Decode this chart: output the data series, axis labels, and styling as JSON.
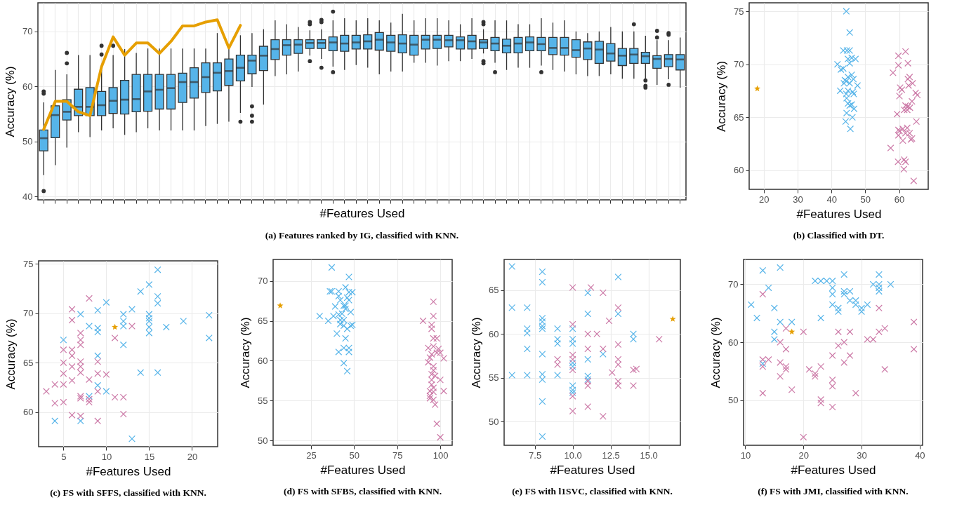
{
  "chart_data": [
    {
      "type": "box",
      "title": "(a) Features ranked by IG, classified with KNN.",
      "xlabel": "#Features Used",
      "ylabel": "Accuracy (%)",
      "ylim": [
        39.4,
        75.2
      ],
      "yticks": [
        40,
        50,
        60,
        70
      ],
      "grid": true,
      "categories": [
        null,
        null,
        null,
        null,
        null,
        null,
        null,
        null,
        null,
        null,
        null,
        null,
        null,
        null,
        null,
        null,
        null,
        null,
        null,
        null,
        null,
        null,
        null,
        null,
        null,
        null,
        null,
        null,
        null,
        null,
        null,
        null,
        null,
        null,
        null,
        null,
        null,
        null,
        null,
        null,
        null,
        null,
        null,
        null,
        null,
        null,
        null,
        null,
        null,
        null,
        null,
        null,
        null,
        null,
        null,
        null
      ],
      "series": [
        {
          "type": "box",
          "color": "#56b4e9",
          "boxes": [
            {
              "low": 43.9,
              "q1": 48.3,
              "median": 50.6,
              "q3": 52.1,
              "high": 57.1,
              "outliers": [
                59.1,
                58.7,
                41.0
              ]
            },
            {
              "low": 45.7,
              "q1": 50.7,
              "median": 54.8,
              "q3": 56.5,
              "high": 63.0
            },
            {
              "low": 48.9,
              "q1": 53.9,
              "median": 55.4,
              "q3": 57.6,
              "high": 62.2,
              "outliers": [
                66.1,
                64.2
              ]
            },
            {
              "low": 51.7,
              "q1": 54.7,
              "median": 56.3,
              "q3": 59.5,
              "high": 65.7
            },
            {
              "low": 50.8,
              "q1": 54.7,
              "median": 56.3,
              "q3": 59.8,
              "high": 65.7
            },
            {
              "low": 52.0,
              "q1": 54.7,
              "median": 56.6,
              "q3": 59.1,
              "high": 63.0,
              "outliers": [
                67.4,
                65.8
              ]
            },
            {
              "low": 52.4,
              "q1": 55.1,
              "median": 57.4,
              "q3": 59.8,
              "high": 65.7,
              "outliers": [
                67.4
              ]
            },
            {
              "low": 51.2,
              "q1": 55.0,
              "median": 57.6,
              "q3": 61.1,
              "high": 66.8
            },
            {
              "low": 51.7,
              "q1": 55.4,
              "median": 57.7,
              "q3": 62.2,
              "high": 66.1
            },
            {
              "low": 52.4,
              "q1": 55.5,
              "median": 59.1,
              "q3": 62.2,
              "high": 66.9
            },
            {
              "low": 52.0,
              "q1": 55.9,
              "median": 59.4,
              "q3": 62.2,
              "high": 66.9
            },
            {
              "low": 52.0,
              "q1": 55.9,
              "median": 59.7,
              "q3": 62.2,
              "high": 66.9
            },
            {
              "low": 52.0,
              "q1": 57.1,
              "median": 60.8,
              "q3": 62.4,
              "high": 66.9
            },
            {
              "low": 52.0,
              "q1": 57.9,
              "median": 60.8,
              "q3": 63.4,
              "high": 66.9
            },
            {
              "low": 52.8,
              "q1": 58.9,
              "median": 61.7,
              "q3": 64.3,
              "high": 66.9
            },
            {
              "low": 53.2,
              "q1": 59.2,
              "median": 62.5,
              "q3": 64.3,
              "high": 69.7
            },
            {
              "low": 53.6,
              "q1": 60.2,
              "median": 62.8,
              "q3": 65.0,
              "high": 67.0
            },
            {
              "low": 55.2,
              "q1": 61.0,
              "median": 63.4,
              "q3": 65.7,
              "high": 69.3,
              "outliers": [
                53.6
              ]
            },
            {
              "low": 59.9,
              "q1": 62.3,
              "median": 64.7,
              "q3": 65.7,
              "high": 69.7,
              "outliers": [
                56.4,
                54.7,
                53.6
              ]
            },
            {
              "low": 56.7,
              "q1": 62.9,
              "median": 65.6,
              "q3": 67.3,
              "high": 70.4
            },
            {
              "low": 61.9,
              "q1": 64.9,
              "median": 66.8,
              "q3": 68.5,
              "high": 72.0
            },
            {
              "low": 62.2,
              "q1": 65.7,
              "median": 67.5,
              "q3": 68.5,
              "high": 71.3
            },
            {
              "low": 62.7,
              "q1": 66.0,
              "median": 67.6,
              "q3": 68.5,
              "high": 70.8
            },
            {
              "low": 65.6,
              "q1": 66.9,
              "median": 67.9,
              "q3": 68.5,
              "high": 70.2,
              "outliers": [
                71.7,
                71.3,
                64.6
              ]
            },
            {
              "low": 65.0,
              "q1": 66.9,
              "median": 67.9,
              "q3": 68.5,
              "high": 70.4,
              "outliers": [
                72.1,
                71.7,
                63.4
              ]
            },
            {
              "low": 63.6,
              "q1": 66.5,
              "median": 68.0,
              "q3": 69.0,
              "high": 72.0,
              "outliers": [
                73.6,
                62.6
              ]
            },
            {
              "low": 63.0,
              "q1": 66.4,
              "median": 67.8,
              "q3": 69.3,
              "high": 72.4
            },
            {
              "low": 63.9,
              "q1": 66.8,
              "median": 68.0,
              "q3": 69.3,
              "high": 72.0
            },
            {
              "low": 63.4,
              "q1": 66.8,
              "median": 68.2,
              "q3": 69.4,
              "high": 72.4
            },
            {
              "low": 62.2,
              "q1": 66.6,
              "median": 68.5,
              "q3": 69.8,
              "high": 72.0
            },
            {
              "low": 62.7,
              "q1": 66.4,
              "median": 68.0,
              "q3": 69.3,
              "high": 71.6
            },
            {
              "low": 62.7,
              "q1": 66.1,
              "median": 67.8,
              "q3": 69.4,
              "high": 73.2
            },
            {
              "low": 64.3,
              "q1": 65.7,
              "median": 67.6,
              "q3": 69.3,
              "high": 72.0
            },
            {
              "low": 64.3,
              "q1": 66.8,
              "median": 68.5,
              "q3": 69.3,
              "high": 72.4
            },
            {
              "low": 63.8,
              "q1": 66.9,
              "median": 68.5,
              "q3": 69.3,
              "high": 72.4
            },
            {
              "low": 64.6,
              "q1": 67.2,
              "median": 68.4,
              "q3": 69.3,
              "high": 72.0
            },
            {
              "low": 64.6,
              "q1": 66.8,
              "median": 68.4,
              "q3": 69.0,
              "high": 71.3
            },
            {
              "low": 65.0,
              "q1": 66.8,
              "median": 68.2,
              "q3": 69.3,
              "high": 72.4
            },
            {
              "low": 66.0,
              "q1": 66.9,
              "median": 68.0,
              "q3": 68.5,
              "high": 70.4,
              "outliers": [
                71.7,
                71.3,
                64.6,
                64.2
              ]
            },
            {
              "low": 64.3,
              "q1": 66.5,
              "median": 67.8,
              "q3": 68.9,
              "high": 72.0,
              "outliers": [
                62.6
              ]
            },
            {
              "low": 63.0,
              "q1": 66.1,
              "median": 67.4,
              "q3": 68.6,
              "high": 72.0
            },
            {
              "low": 63.4,
              "q1": 66.1,
              "median": 67.8,
              "q3": 68.9,
              "high": 71.3
            },
            {
              "low": 63.4,
              "q1": 66.5,
              "median": 68.0,
              "q3": 69.0,
              "high": 71.3
            },
            {
              "low": 63.8,
              "q1": 66.5,
              "median": 67.7,
              "q3": 68.9,
              "high": 72.4,
              "outliers": [
                62.6
              ]
            },
            {
              "low": 63.0,
              "q1": 65.8,
              "median": 67.0,
              "q3": 68.9,
              "high": 71.6
            },
            {
              "low": 62.7,
              "q1": 65.7,
              "median": 67.0,
              "q3": 68.9,
              "high": 72.0
            },
            {
              "low": 62.2,
              "q1": 65.3,
              "median": 66.6,
              "q3": 68.5,
              "high": 70.0
            },
            {
              "low": 61.9,
              "q1": 64.9,
              "median": 66.9,
              "q3": 68.1,
              "high": 69.7
            },
            {
              "low": 61.9,
              "q1": 64.2,
              "median": 66.7,
              "q3": 68.2,
              "high": 70.0
            },
            {
              "low": 62.2,
              "q1": 64.6,
              "median": 66.0,
              "q3": 67.8,
              "high": 70.8
            },
            {
              "low": 61.4,
              "q1": 63.8,
              "median": 65.6,
              "q3": 66.9,
              "high": 70.0
            },
            {
              "low": 61.4,
              "q1": 64.2,
              "median": 65.8,
              "q3": 66.9,
              "high": 70.0,
              "outliers": [
                71.3
              ]
            },
            {
              "low": 61.4,
              "q1": 64.2,
              "median": 65.5,
              "q3": 66.2,
              "high": 69.2,
              "outliers": [
                61.1,
                60.1,
                59.8
              ]
            },
            {
              "low": 60.3,
              "q1": 63.3,
              "median": 65.0,
              "q3": 65.6,
              "high": 68.4,
              "outliers": [
                70.1,
                68.9
              ]
            },
            {
              "low": 61.3,
              "q1": 63.6,
              "median": 65.0,
              "q3": 65.8,
              "high": 68.4,
              "outliers": [
                69.7,
                69.4,
                60.3
              ]
            },
            {
              "low": 59.8,
              "q1": 63.0,
              "median": 64.9,
              "q3": 65.8,
              "high": 68.9
            }
          ]
        },
        {
          "type": "line",
          "color": "#e69f00",
          "line_style": "solid",
          "values": [
            52.2,
            57.3,
            57.3,
            55.4,
            54.7,
            63.6,
            69.0,
            65.7,
            67.9,
            67.9,
            66.0,
            68.2,
            71.0,
            71.0,
            71.7,
            72.1,
            67.0,
            71.1,
            null,
            null,
            null,
            null,
            null,
            null,
            null,
            null,
            null,
            null,
            null,
            null,
            null,
            null,
            null,
            null,
            null,
            null,
            null,
            null,
            null,
            null,
            null,
            null,
            null,
            null,
            null,
            null,
            null,
            null,
            null,
            null,
            null,
            null,
            null,
            null,
            null,
            null
          ]
        }
      ]
    },
    {
      "type": "scatter",
      "title": "(b) Classified with DT.",
      "xlabel": "#Features Used",
      "ylabel": "Accuracy (%)",
      "xlim": [
        15.7,
        68.6
      ],
      "xticks": [
        20,
        30,
        40,
        50,
        60
      ],
      "ylim": [
        58.2,
        75.8
      ],
      "yticks": [
        60,
        65,
        70,
        75
      ],
      "grid": true,
      "series": [
        {
          "color": "#56b4e9",
          "marker": "cross",
          "x": [
            44.4,
            45.4,
            43.5,
            44.6,
            45.4,
            44.9,
            46.0,
            47.1,
            41.8,
            42.8,
            43.5,
            45.4,
            44.4,
            44.0,
            44.9,
            46.0,
            46.5,
            45.4,
            47.7,
            42.6,
            44.9,
            46.3,
            44.4,
            46.6,
            44.5,
            44.9,
            45.4,
            46.0,
            44.5,
            46.7,
            44.2,
            46.2,
            45.6,
            43.7
          ],
          "values": [
            75.0,
            73.0,
            71.3,
            71.3,
            71.3,
            70.5,
            70.6,
            70.5,
            70.0,
            69.5,
            69.6,
            70.1,
            68.4,
            68.5,
            68.8,
            69.0,
            68.6,
            68.2,
            68.0,
            67.5,
            67.5,
            67.4,
            67.2,
            67.2,
            66.8,
            66.3,
            66.1,
            66.2,
            65.4,
            65.8,
            64.6,
            65.0,
            63.9,
            68.2
          ]
        },
        {
          "color": "#cc79a7",
          "marker": "cross",
          "x": [
            59.8,
            61.9,
            59.8,
            62.6,
            58.2,
            62.6,
            63.1,
            64.0,
            62.8,
            60.3,
            60.8,
            60.1,
            64.9,
            65.4,
            63.8,
            61.9,
            61.5,
            62.4,
            63.2,
            62.6,
            59.4,
            65.1,
            59.8,
            60.1,
            61.1,
            62.4,
            59.8,
            61.9,
            63.1,
            61.1,
            63.5,
            63.8,
            57.5,
            59.7,
            61.5,
            61.9,
            61.4,
            64.3
          ],
          "values": [
            70.8,
            71.2,
            69.9,
            70.1,
            69.2,
            68.6,
            68.8,
            68.2,
            68.0,
            67.8,
            67.6,
            67.0,
            67.3,
            67.1,
            66.5,
            66.1,
            65.7,
            65.7,
            65.9,
            66.0,
            65.3,
            64.6,
            63.8,
            63.7,
            63.9,
            64.0,
            63.3,
            63.5,
            63.5,
            62.8,
            62.9,
            63.0,
            62.1,
            60.8,
            61.0,
            60.8,
            60.1,
            59.0
          ]
        },
        {
          "color": "#e69f00",
          "marker": "star",
          "x": [
            18.1
          ],
          "values": [
            67.7
          ]
        }
      ]
    },
    {
      "type": "scatter",
      "title": "(c) FS with SFFS, classified with KNN.",
      "xlabel": "#Features Used",
      "ylabel": "Accuracy (%)",
      "xlim": [
        2.1,
        23.0
      ],
      "xticks": [
        5,
        10,
        15,
        20
      ],
      "ylim": [
        56.5,
        75.3
      ],
      "yticks": [
        60,
        65,
        70,
        75
      ],
      "grid": true,
      "series": [
        {
          "color": "#56b4e9",
          "marker": "cross",
          "x": [
            16,
            15,
            14,
            16,
            16,
            10,
            7,
            9,
            12,
            15,
            22,
            19,
            15,
            12,
            15,
            8,
            9,
            12,
            17,
            9,
            15,
            15,
            22,
            5,
            12,
            9,
            14,
            16,
            9,
            10,
            8,
            4,
            7,
            13,
            13
          ],
          "values": [
            74.4,
            72.9,
            72.2,
            71.7,
            71.0,
            71.1,
            69.9,
            70.3,
            69.9,
            69.9,
            69.8,
            69.2,
            69.5,
            69.2,
            69.2,
            68.7,
            68.5,
            68.7,
            68.6,
            68.1,
            68.6,
            68.0,
            67.5,
            67.3,
            66.8,
            65.7,
            64.0,
            64.0,
            62.7,
            62.1,
            61.6,
            59.1,
            59.1,
            57.3,
            70.4
          ]
        },
        {
          "color": "#cc79a7",
          "marker": "cross",
          "x": [
            3,
            4,
            4,
            5,
            5,
            5,
            5,
            5,
            6,
            6,
            6,
            6,
            6,
            6,
            6,
            7,
            7,
            7,
            7,
            7,
            7,
            7,
            7,
            7,
            8,
            8,
            8,
            8,
            9,
            9,
            9,
            9,
            10,
            11,
            12,
            12,
            11,
            13
          ],
          "values": [
            62.1,
            62.8,
            60.9,
            62.8,
            61.0,
            63.9,
            65.0,
            66.3,
            70.4,
            69.3,
            66.3,
            65.7,
            64.6,
            63.2,
            59.7,
            68.0,
            67.3,
            66.8,
            65.1,
            64.6,
            64.0,
            61.6,
            61.4,
            59.6,
            71.5,
            63.3,
            61.3,
            61.0,
            65.1,
            63.9,
            62.1,
            59.1,
            63.8,
            61.5,
            61.5,
            59.8,
            67.5,
            68.7
          ]
        },
        {
          "color": "#e69f00",
          "marker": "star",
          "x": [
            11
          ],
          "values": [
            68.6
          ]
        }
      ]
    },
    {
      "type": "scatter",
      "title": "(d) FS with SFBS, classified with KNN.",
      "xlabel": "#Features Used",
      "ylabel": "Accuracy (%)",
      "xlim": [
        3.0,
        106.9
      ],
      "xticks": [
        25,
        50,
        75,
        100
      ],
      "ylim": [
        49.4,
        72.7
      ],
      "yticks": [
        50,
        55,
        60,
        65,
        70
      ],
      "grid": true,
      "series": [
        {
          "color": "#56b4e9",
          "marker": "cross",
          "x": [
            37,
            47,
            36,
            37,
            41,
            45,
            41,
            47,
            49,
            46,
            42,
            44,
            45,
            47,
            39,
            45,
            43,
            41,
            30,
            38,
            35,
            42,
            44,
            48,
            42,
            44,
            46,
            48,
            49,
            40,
            45,
            41,
            44,
            47,
            47,
            44,
            46
          ],
          "values": [
            71.7,
            70.5,
            68.7,
            68.7,
            68.7,
            69.2,
            68.1,
            68.6,
            68.6,
            67.9,
            67.6,
            66.9,
            66.9,
            67.6,
            66.8,
            66.5,
            65.9,
            65.8,
            65.6,
            65.6,
            65.0,
            65.1,
            65.1,
            66.1,
            64.6,
            64.4,
            64.0,
            64.4,
            64.5,
            63.4,
            62.8,
            61.1,
            61.6,
            61.6,
            61.1,
            59.7,
            58.7
          ]
        },
        {
          "color": "#cc79a7",
          "marker": "cross",
          "x": [
            96,
            96,
            90,
            95,
            95,
            96,
            98,
            93,
            96,
            99,
            98,
            100,
            95,
            94,
            102,
            93,
            96,
            96,
            95,
            97,
            95,
            100,
            95,
            96,
            94,
            96,
            102,
            94,
            94,
            96,
            97,
            98,
            100
          ],
          "values": [
            67.4,
            65.6,
            65.0,
            64.5,
            64.0,
            62.8,
            62.8,
            61.6,
            61.8,
            61.5,
            61.0,
            61.0,
            60.8,
            60.4,
            60.3,
            59.8,
            59.3,
            58.8,
            58.3,
            58.1,
            57.6,
            57.6,
            57.0,
            56.6,
            56.2,
            56.1,
            56.2,
            55.6,
            55.3,
            55.1,
            54.5,
            52.1,
            50.4
          ]
        },
        {
          "color": "#e69f00",
          "marker": "star",
          "x": [
            7.1
          ],
          "values": [
            66.9
          ]
        }
      ]
    },
    {
      "type": "scatter",
      "title": "(e) FS with l1SVC, classified with KNN.",
      "xlabel": "#Features Used",
      "ylabel": "Accuracy (%)",
      "xlim": [
        5.48,
        17.1
      ],
      "xticks": [
        7.5,
        {
          "value": 10,
          "label": "10.0"
        },
        12.5,
        {
          "value": 15,
          "label": "15.0"
        }
      ],
      "ylim": [
        47.3,
        68.5
      ],
      "yticks": [
        50,
        55,
        60,
        65
      ],
      "grid": true,
      "series": [
        {
          "color": "#56b4e9",
          "marker": "cross",
          "x": [
            6,
            6,
            6,
            7,
            7,
            7,
            7,
            7,
            8,
            8,
            8,
            8,
            8,
            8,
            8,
            8,
            8,
            8,
            8,
            9,
            9,
            9,
            9,
            10,
            10,
            10,
            10,
            10,
            10,
            10,
            10,
            11,
            11,
            11,
            11,
            11,
            12,
            13,
            13,
            14,
            14
          ],
          "values": [
            67.7,
            63.0,
            55.3,
            63.0,
            60.6,
            60.1,
            58.3,
            55.3,
            67.1,
            65.9,
            61.8,
            61.4,
            60.9,
            60.6,
            57.7,
            55.4,
            54.8,
            52.3,
            48.3,
            60.6,
            59.4,
            58.9,
            55.3,
            60.6,
            59.4,
            58.9,
            56.7,
            56.3,
            54.1,
            53.6,
            53.3,
            64.7,
            62.3,
            57.1,
            55.2,
            54.8,
            57.7,
            66.5,
            62.3,
            60.0,
            59.4
          ]
        },
        {
          "color": "#cc79a7",
          "marker": "cross",
          "x": [
            9,
            9,
            10,
            10,
            10,
            10,
            10,
            10,
            10,
            11,
            11,
            11,
            11,
            11,
            11.2,
            11.6,
            12,
            12,
            12,
            12.4,
            12.6,
            13,
            13,
            13,
            13,
            13,
            13,
            14,
            14,
            14.2,
            15.7
          ],
          "values": [
            57.1,
            56.5,
            65.3,
            61.1,
            57.6,
            57.1,
            55.9,
            52.9,
            51.2,
            60.0,
            58.3,
            54.6,
            54.1,
            51.7,
            65.3,
            60.0,
            64.7,
            58.3,
            50.6,
            61.5,
            55.6,
            63.0,
            58.8,
            57.1,
            56.5,
            54.6,
            54.1,
            55.9,
            54.1,
            56.0,
            59.4
          ]
        },
        {
          "color": "#e69f00",
          "marker": "star",
          "x": [
            16.6
          ],
          "values": [
            61.7
          ]
        }
      ]
    },
    {
      "type": "scatter",
      "title": "(f) FS with JMI, classified with KNN.",
      "xlabel": "#Features Used",
      "ylabel": "Accuracy (%)",
      "xlim": [
        9.7,
        40.5
      ],
      "xticks": [
        10,
        20,
        30,
        40
      ],
      "ylim": [
        42.2,
        74.3
      ],
      "yticks": [
        50,
        60,
        70
      ],
      "grid": true,
      "series": [
        {
          "color": "#56b4e9",
          "marker": "cross",
          "x": [
            11,
            12,
            13,
            13,
            14,
            15,
            15,
            15,
            16,
            16,
            18,
            22,
            23,
            24,
            25,
            23,
            25,
            25,
            25,
            26,
            26,
            27,
            27,
            27,
            28,
            28,
            29,
            29,
            30,
            30,
            31,
            32,
            33,
            33,
            33,
            33,
            35
          ],
          "values": [
            66.5,
            64.2,
            72.4,
            56.3,
            69.4,
            65.9,
            61.8,
            60.5,
            72.9,
            63.5,
            63.5,
            70.6,
            70.6,
            70.6,
            70.6,
            64.2,
            69.4,
            68.3,
            66.5,
            65.9,
            65.3,
            71.7,
            68.8,
            68.3,
            68.8,
            67.2,
            67.2,
            66.5,
            65.9,
            65.3,
            66.5,
            70.0,
            71.7,
            70.0,
            69.4,
            68.8,
            70.0
          ]
        },
        {
          "color": "#cc79a7",
          "marker": "cross",
          "x": [
            13,
            13,
            13,
            13,
            14,
            16,
            16,
            16,
            17,
            17,
            17,
            17,
            18,
            20,
            20,
            21,
            22,
            22,
            23,
            23,
            23,
            25,
            25,
            25,
            25,
            26,
            26,
            27,
            27,
            28,
            28,
            29,
            31,
            32,
            33,
            33,
            34,
            34,
            39,
            39
          ],
          "values": [
            68.3,
            57.0,
            55.8,
            51.2,
            57.0,
            60.0,
            56.5,
            54.1,
            62.4,
            58.8,
            55.8,
            55.3,
            51.8,
            61.8,
            43.6,
            55.3,
            54.6,
            54.1,
            55.8,
            50.1,
            49.5,
            57.7,
            53.5,
            52.4,
            48.8,
            61.8,
            59.4,
            60.0,
            56.5,
            61.8,
            57.7,
            51.2,
            60.5,
            60.5,
            65.9,
            61.8,
            62.4,
            55.3,
            63.5,
            58.8
          ]
        },
        {
          "color": "#e69f00",
          "marker": "star",
          "x": [
            18
          ],
          "values": [
            61.8
          ]
        }
      ]
    }
  ]
}
